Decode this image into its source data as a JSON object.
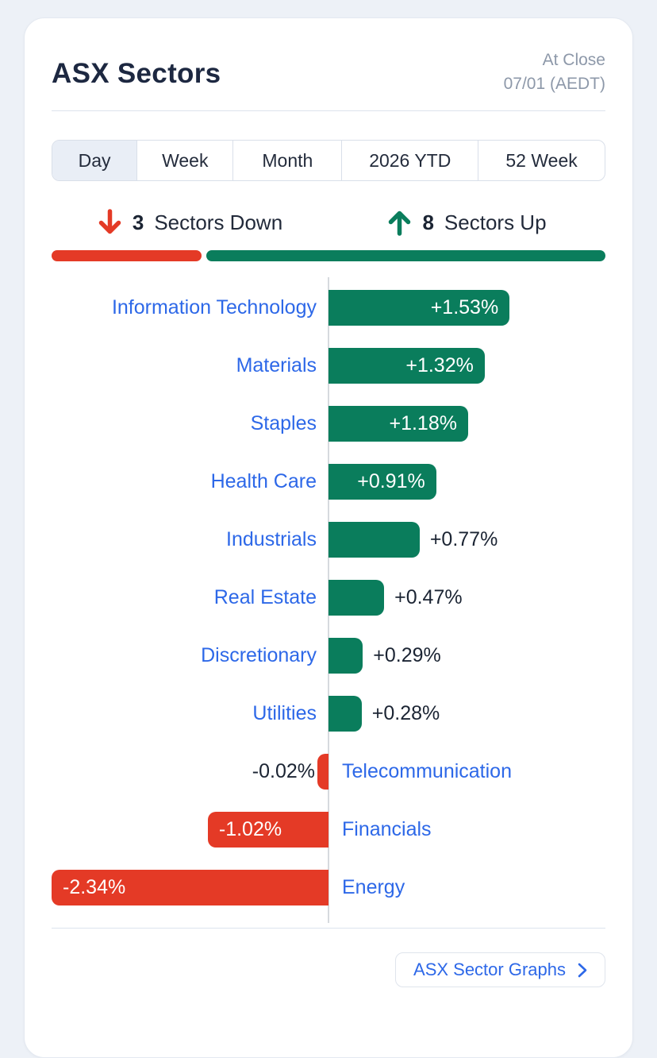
{
  "header": {
    "title": "ASX Sectors",
    "at_close": "At Close",
    "date": "07/01 (AEDT)"
  },
  "tabs": [
    {
      "label": "Day",
      "selected": true
    },
    {
      "label": "Week",
      "selected": false
    },
    {
      "label": "Month",
      "selected": false
    },
    {
      "label": "2026 YTD",
      "selected": false
    },
    {
      "label": "52 Week",
      "selected": false
    }
  ],
  "summary": {
    "down_count": "3",
    "down_label": "Sectors Down",
    "up_count": "8",
    "up_label": "Sectors Up"
  },
  "chart_data": {
    "type": "bar",
    "orientation": "horizontal",
    "axis": "center-zero",
    "unit": "%",
    "xlim": [
      -2.34,
      2.34
    ],
    "grid": false,
    "categories": [
      "Information Technology",
      "Materials",
      "Staples",
      "Health Care",
      "Industrials",
      "Real Estate",
      "Discretionary",
      "Utilities",
      "Telecommunication",
      "Financials",
      "Energy"
    ],
    "values": [
      1.53,
      1.32,
      1.18,
      0.91,
      0.77,
      0.47,
      0.29,
      0.28,
      -0.02,
      -1.02,
      -2.34
    ],
    "value_labels": [
      "+1.53%",
      "+1.32%",
      "+1.18%",
      "+0.91%",
      "+0.77%",
      "+0.47%",
      "+0.29%",
      "+0.28%",
      "-0.02%",
      "-1.02%",
      "-2.34%"
    ]
  },
  "colors": {
    "green": "#0a7d5c",
    "red": "#e43a26",
    "blue": "#2d68e8",
    "navy": "#1d2841"
  },
  "footer": {
    "button_label": "ASX Sector Graphs"
  }
}
